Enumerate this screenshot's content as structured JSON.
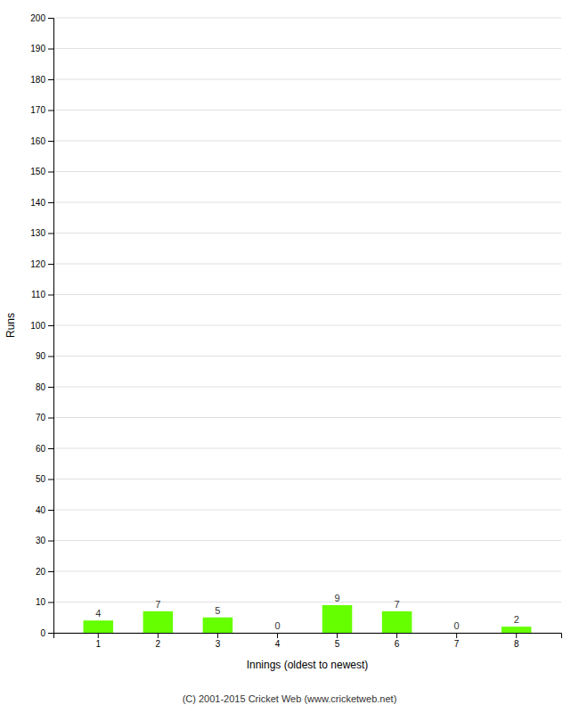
{
  "chart_data": {
    "type": "bar",
    "categories": [
      "1",
      "2",
      "3",
      "4",
      "5",
      "6",
      "7",
      "8"
    ],
    "values": [
      4,
      7,
      5,
      0,
      9,
      7,
      0,
      2
    ],
    "color": "#66ff00",
    "xlabel": "Innings (oldest to newest)",
    "ylabel": "Runs",
    "annotations": [
      "(C) 2001-2015 Cricket Web (www.cricketweb.net)"
    ],
    "ylim": [
      0,
      200
    ],
    "yticks": [
      0,
      10,
      20,
      30,
      40,
      50,
      60,
      70,
      80,
      90,
      100,
      110,
      120,
      130,
      140,
      150,
      160,
      170,
      180,
      190,
      200
    ],
    "grid": true,
    "data_labels": true
  }
}
